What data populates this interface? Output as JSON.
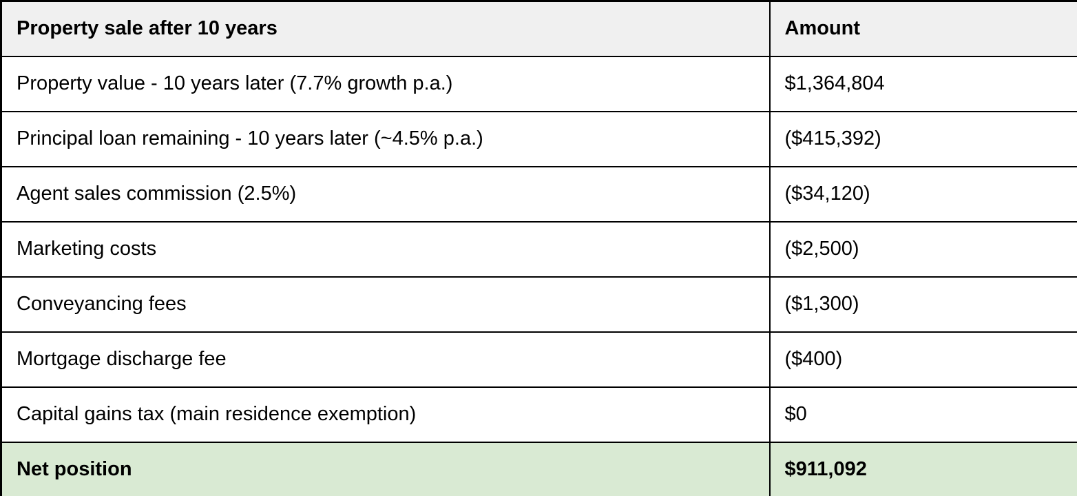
{
  "table": {
    "header": {
      "label": "Property sale after 10 years",
      "amount": "Amount"
    },
    "rows": [
      {
        "label": "Property value - 10 years later (7.7% growth p.a.)",
        "amount": "$1,364,804"
      },
      {
        "label": "Principal loan remaining - 10 years later (~4.5% p.a.)",
        "amount": "($415,392)"
      },
      {
        "label": "Agent sales commission (2.5%)",
        "amount": "($34,120)"
      },
      {
        "label": "Marketing costs",
        "amount": "($2,500)"
      },
      {
        "label": "Conveyancing fees",
        "amount": "($1,300)"
      },
      {
        "label": "Mortgage discharge fee",
        "amount": "($400)"
      },
      {
        "label": "Capital gains tax (main residence exemption)",
        "amount": "$0"
      }
    ],
    "footer": {
      "label": "Net position",
      "amount": "$911,092"
    },
    "colors": {
      "header_bg": "#f0f0f0",
      "footer_bg": "#d9ead3",
      "border": "#000000",
      "text": "#000000",
      "row_bg": "#ffffff"
    }
  }
}
